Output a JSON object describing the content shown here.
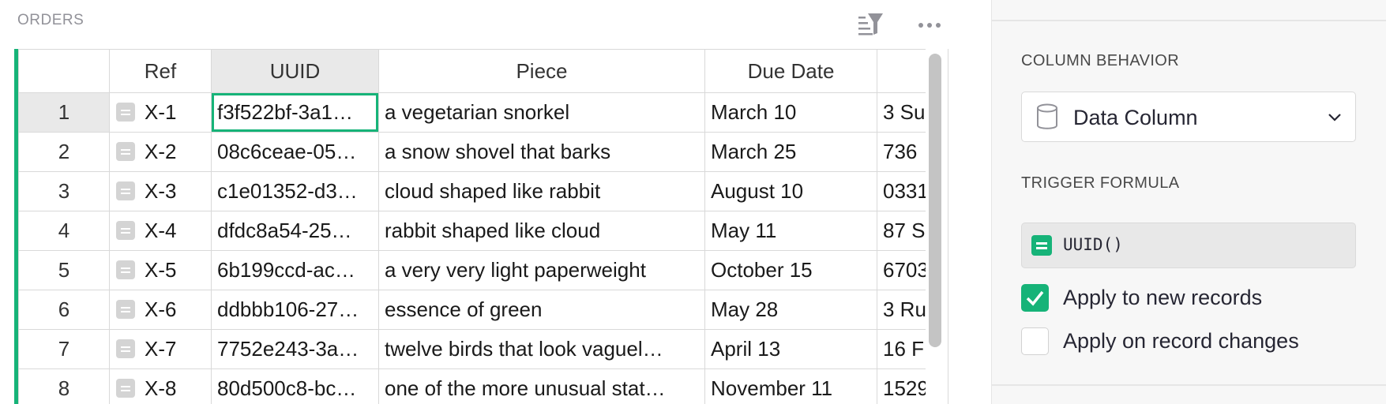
{
  "section": {
    "title": "ORDERS"
  },
  "toolbar": {
    "sort_filter_icon": "sort-filter-icon",
    "more_icon": "more-options-icon"
  },
  "grid": {
    "columns": [
      "Ref",
      "UUID",
      "Piece",
      "Due Date",
      ""
    ],
    "rows": [
      {
        "num": "1",
        "ref": "X-1",
        "uuid": "f3f522bf-3a1…",
        "piece": "a vegetarian snorkel",
        "due": "March 10",
        "extra": "3 Su"
      },
      {
        "num": "2",
        "ref": "X-2",
        "uuid": "08c6ceae-05…",
        "piece": "a snow shovel that barks",
        "due": "March 25",
        "extra": "736"
      },
      {
        "num": "3",
        "ref": "X-3",
        "uuid": "c1e01352-d3…",
        "piece": "cloud shaped like rabbit",
        "due": "August 10",
        "extra": "0331"
      },
      {
        "num": "4",
        "ref": "X-4",
        "uuid": "dfdc8a54-25…",
        "piece": "rabbit shaped like cloud",
        "due": "May 11",
        "extra": "87 S"
      },
      {
        "num": "5",
        "ref": "X-5",
        "uuid": "6b199ccd-ac…",
        "piece": "a very very light paperweight",
        "due": "October 15",
        "extra": "6703"
      },
      {
        "num": "6",
        "ref": "X-6",
        "uuid": "ddbbb106-27…",
        "piece": "essence of green",
        "due": "May 28",
        "extra": "3 Ru"
      },
      {
        "num": "7",
        "ref": "X-7",
        "uuid": "7752e243-3a…",
        "piece": "twelve birds that look vaguel…",
        "due": "April 13",
        "extra": "16 F"
      },
      {
        "num": "8",
        "ref": "X-8",
        "uuid": "80d500c8-bc…",
        "piece": "one of the more unusual stat…",
        "due": "November 11",
        "extra": "1529"
      }
    ]
  },
  "panel": {
    "column_behavior_label": "COLUMN BEHAVIOR",
    "behavior_value": "Data Column",
    "trigger_formula_label": "TRIGGER FORMULA",
    "formula": "UUID()",
    "apply_new_label": "Apply to new records",
    "apply_new_checked": true,
    "apply_changes_label": "Apply on record changes",
    "apply_changes_checked": false
  },
  "colors": {
    "accent": "#16b378",
    "panel_bg": "#f7f7f7",
    "muted_text": "#929299"
  }
}
